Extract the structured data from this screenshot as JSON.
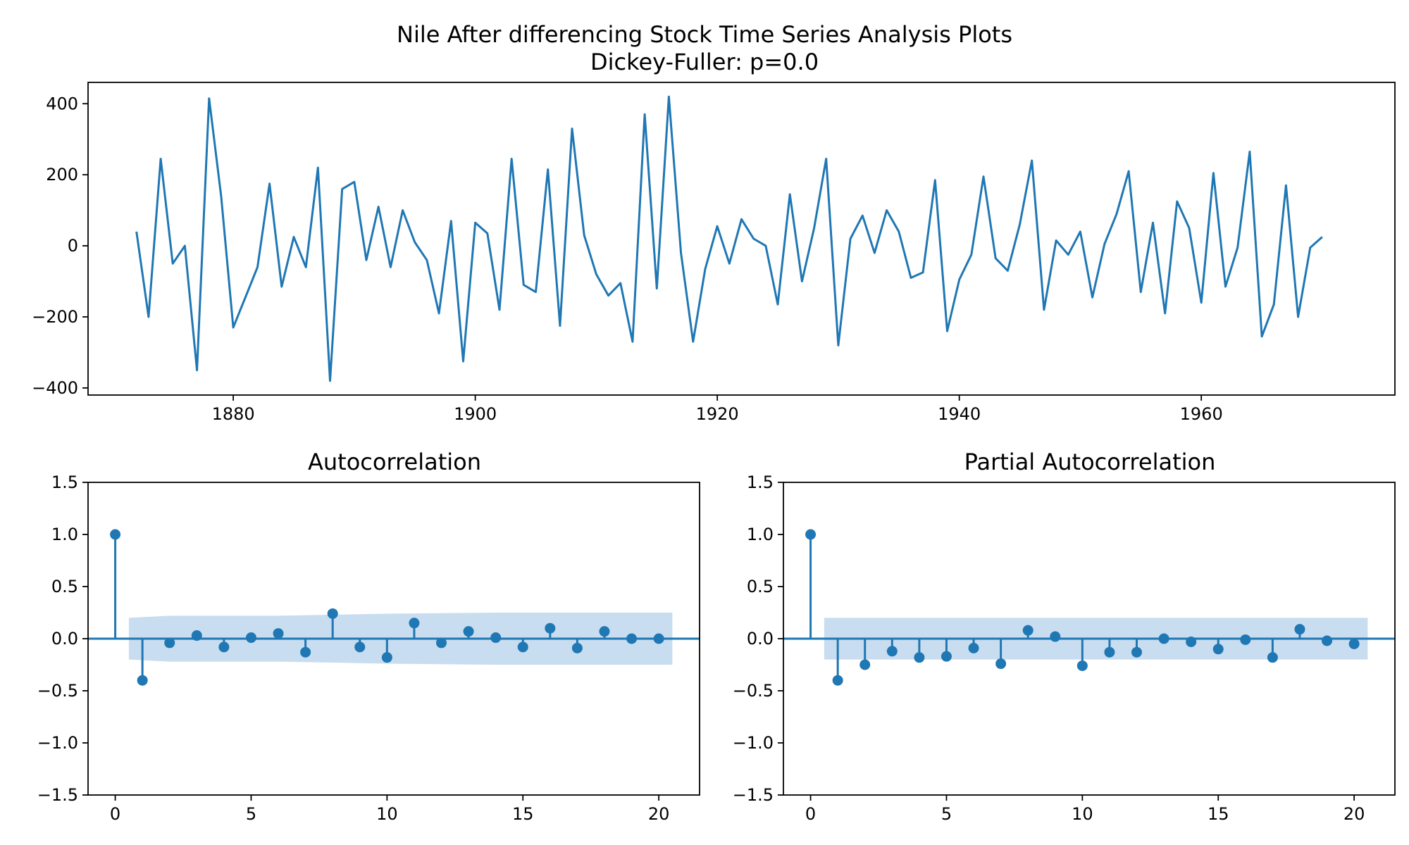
{
  "figure": {
    "suptitle_line1": "Nile After differencing Stock Time Series Analysis Plots",
    "suptitle_line2": "Dickey-Fuller: p=0.0"
  },
  "chart_data": [
    {
      "type": "line",
      "title": "",
      "xlabel": "",
      "ylabel": "",
      "xlim": [
        1868,
        1976
      ],
      "ylim": [
        -420,
        460
      ],
      "x_ticks": [
        1880,
        1900,
        1920,
        1940,
        1960
      ],
      "x_tick_labels": [
        "1880",
        "1900",
        "1920",
        "1940",
        "1960"
      ],
      "y_ticks": [
        400,
        200,
        0,
        -200,
        -400
      ],
      "y_tick_labels": [
        "400",
        "200",
        "0",
        "−200",
        "−400"
      ],
      "color": "#1f77b4",
      "x": [
        1872,
        1873,
        1874,
        1875,
        1876,
        1877,
        1878,
        1879,
        1880,
        1881,
        1882,
        1883,
        1884,
        1885,
        1886,
        1887,
        1888,
        1889,
        1890,
        1891,
        1892,
        1893,
        1894,
        1895,
        1896,
        1897,
        1898,
        1899,
        1900,
        1901,
        1902,
        1903,
        1904,
        1905,
        1906,
        1907,
        1908,
        1909,
        1910,
        1911,
        1912,
        1913,
        1914,
        1915,
        1916,
        1917,
        1918,
        1919,
        1920,
        1921,
        1922,
        1923,
        1924,
        1925,
        1926,
        1927,
        1928,
        1929,
        1930,
        1931,
        1932,
        1933,
        1934,
        1935,
        1936,
        1937,
        1938,
        1939,
        1940,
        1941,
        1942,
        1943,
        1944,
        1945,
        1946,
        1947,
        1948,
        1949,
        1950,
        1951,
        1952,
        1953,
        1954,
        1955,
        1956,
        1957,
        1958,
        1959,
        1960,
        1961,
        1962,
        1963,
        1964,
        1965,
        1966,
        1967,
        1968,
        1969,
        1970
      ],
      "values": [
        40,
        -200,
        245,
        -50,
        0,
        -350,
        415,
        140,
        -230,
        -145,
        -60,
        175,
        -115,
        25,
        -60,
        220,
        -380,
        160,
        180,
        -40,
        110,
        -60,
        100,
        10,
        -40,
        -190,
        70,
        -325,
        65,
        35,
        -180,
        245,
        -110,
        -130,
        215,
        -225,
        330,
        30,
        -80,
        -140,
        -105,
        -270,
        370,
        -120,
        420,
        -20,
        -270,
        -65,
        55,
        -50,
        75,
        20,
        0,
        -165,
        145,
        -100,
        50,
        245,
        -280,
        20,
        85,
        -20,
        100,
        40,
        -90,
        -75,
        185,
        -240,
        -95,
        -25,
        195,
        -35,
        -70,
        60,
        240,
        -180,
        15,
        -25,
        40,
        -145,
        5,
        90,
        210,
        -130,
        65,
        -190,
        125,
        50,
        -160,
        205,
        -115,
        -5,
        265,
        -255,
        -165,
        170,
        -200,
        -5,
        25
      ]
    },
    {
      "type": "scatter",
      "title": "Autocorrelation",
      "xlim": [
        -1,
        21.5
      ],
      "ylim": [
        -1.5,
        1.5
      ],
      "x_ticks": [
        0,
        5,
        10,
        15,
        20
      ],
      "x_tick_labels": [
        "0",
        "5",
        "10",
        "15",
        "20"
      ],
      "y_ticks": [
        1.5,
        1.0,
        0.5,
        0.0,
        -0.5,
        -1.0,
        -1.5
      ],
      "y_tick_labels": [
        "1.5",
        "1.0",
        "0.5",
        "0.0",
        "−0.5",
        "−1.0",
        "−1.5"
      ],
      "color": "#1f77b4",
      "band_color": "#c6dbef",
      "lags": [
        0,
        1,
        2,
        3,
        4,
        5,
        6,
        7,
        8,
        9,
        10,
        11,
        12,
        13,
        14,
        15,
        16,
        17,
        18,
        19,
        20
      ],
      "values": [
        1.0,
        -0.4,
        -0.04,
        0.03,
        -0.08,
        0.01,
        0.05,
        -0.13,
        0.24,
        -0.08,
        -0.18,
        0.15,
        -0.04,
        0.07,
        0.01,
        -0.08,
        0.1,
        -0.09,
        0.07,
        0.0,
        0.0
      ],
      "conf_band_x": [
        0.5,
        2,
        4,
        6,
        8,
        10,
        12,
        14,
        16,
        18,
        20.5
      ],
      "conf_band": [
        0.2,
        0.22,
        0.22,
        0.22,
        0.23,
        0.24,
        0.245,
        0.25,
        0.25,
        0.25,
        0.25
      ]
    },
    {
      "type": "scatter",
      "title": "Partial Autocorrelation",
      "xlim": [
        -1,
        21.5
      ],
      "ylim": [
        -1.5,
        1.5
      ],
      "x_ticks": [
        0,
        5,
        10,
        15,
        20
      ],
      "x_tick_labels": [
        "0",
        "5",
        "10",
        "15",
        "20"
      ],
      "y_ticks": [
        1.5,
        1.0,
        0.5,
        0.0,
        -0.5,
        -1.0,
        -1.5
      ],
      "y_tick_labels": [
        "1.5",
        "1.0",
        "0.5",
        "0.0",
        "−0.5",
        "−1.0",
        "−1.5"
      ],
      "color": "#1f77b4",
      "band_color": "#c6dbef",
      "lags": [
        0,
        1,
        2,
        3,
        4,
        5,
        6,
        7,
        8,
        9,
        10,
        11,
        12,
        13,
        14,
        15,
        16,
        17,
        18,
        19,
        20
      ],
      "values": [
        1.0,
        -0.4,
        -0.25,
        -0.12,
        -0.18,
        -0.17,
        -0.09,
        -0.24,
        0.08,
        0.02,
        -0.26,
        -0.13,
        -0.13,
        0.0,
        -0.03,
        -0.1,
        -0.01,
        -0.18,
        0.09,
        -0.02,
        -0.05
      ],
      "conf_band_x": [
        0.5,
        20.5
      ],
      "conf_band": [
        0.2,
        0.2
      ]
    }
  ]
}
